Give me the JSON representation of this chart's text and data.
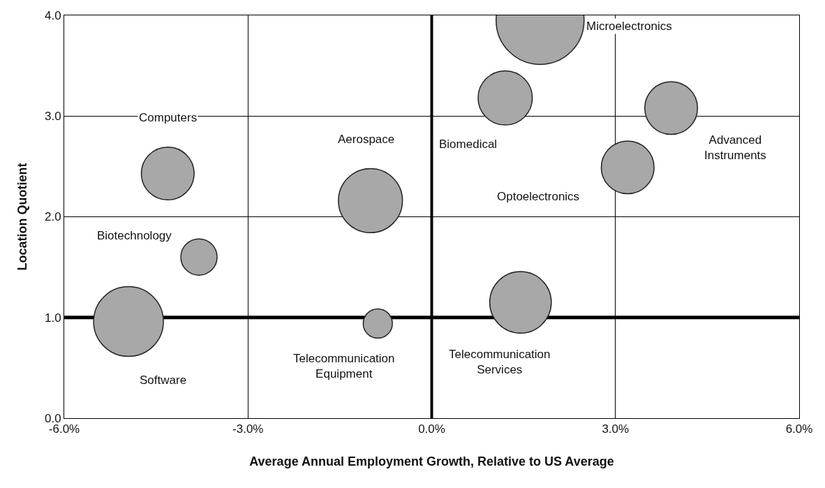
{
  "chart_data": {
    "type": "bubble",
    "xlabel": "Average Annual Employment Growth, Relative to US Average",
    "ylabel": "Location Quotient",
    "xlim": [
      -6,
      6
    ],
    "xticks": [
      {
        "value": -6,
        "label": "-6.0%"
      },
      {
        "value": -3,
        "label": "-3.0%"
      },
      {
        "value": 0,
        "label": "0.0%"
      },
      {
        "value": 3,
        "label": "3.0%"
      },
      {
        "value": 6,
        "label": "6.0%"
      }
    ],
    "ylim": [
      0,
      4
    ],
    "yticks": [
      {
        "value": 0,
        "label": "0.0"
      },
      {
        "value": 1,
        "label": "1.0"
      },
      {
        "value": 2,
        "label": "2.0"
      },
      {
        "value": 3,
        "label": "3.0"
      },
      {
        "value": 4,
        "label": "4.0"
      }
    ],
    "grid": true,
    "legend": false,
    "ref_lines": [
      {
        "axis": "y",
        "value": 1,
        "color": "#000000"
      },
      {
        "axis": "x",
        "value": 0,
        "color": "#000000"
      }
    ],
    "series": [
      {
        "name": "Microelectronics",
        "color": "#a8a8a8",
        "x": [
          1.77
        ],
        "values": [
          3.95
        ],
        "sizes": [
          1
        ]
      },
      {
        "name": "Biomedical",
        "color": "#a8a8a8",
        "x": [
          1.2
        ],
        "values": [
          3.18
        ],
        "sizes": [
          0.38
        ]
      },
      {
        "name": "Advanced\nInstruments",
        "color": "#a8a8a8",
        "x": [
          3.91
        ],
        "values": [
          3.08
        ],
        "sizes": [
          0.36
        ]
      },
      {
        "name": "Optoelectronics",
        "color": "#a8a8a8",
        "x": [
          3.2
        ],
        "values": [
          2.49
        ],
        "sizes": [
          0.36
        ]
      },
      {
        "name": "Computers",
        "color": "#a8a8a8",
        "x": [
          -4.31
        ],
        "values": [
          2.43
        ],
        "sizes": [
          0.36
        ]
      },
      {
        "name": "Aerospace",
        "color": "#a8a8a8",
        "x": [
          -1.0
        ],
        "values": [
          2.16
        ],
        "sizes": [
          0.53
        ]
      },
      {
        "name": "Biotechnology",
        "color": "#a8a8a8",
        "x": [
          -3.8
        ],
        "values": [
          1.6
        ],
        "sizes": [
          0.17
        ]
      },
      {
        "name": "Software",
        "color": "#a8a8a8",
        "x": [
          -4.95
        ],
        "values": [
          0.96
        ],
        "sizes": [
          0.63
        ]
      },
      {
        "name": "Telecommunication\nEquipment",
        "color": "#a8a8a8",
        "x": [
          -0.88
        ],
        "values": [
          0.94
        ],
        "sizes": [
          0.11
        ]
      },
      {
        "name": "Telecommunication\nServices",
        "color": "#a8a8a8",
        "x": [
          1.45
        ],
        "values": [
          1.15
        ],
        "sizes": [
          0.49
        ]
      }
    ]
  }
}
